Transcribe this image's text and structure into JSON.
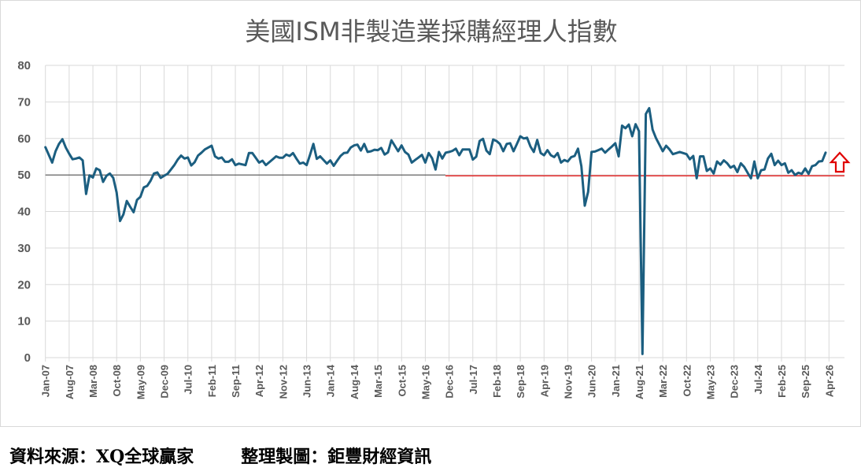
{
  "chart_data": {
    "type": "line",
    "title": "美國ISM非製造業採購經理人指數",
    "xlabel": "",
    "ylabel": "",
    "ylim": [
      0,
      80
    ],
    "yticks": [
      0,
      10,
      20,
      30,
      40,
      50,
      60,
      70,
      80
    ],
    "grid": true,
    "legend": "none",
    "x_tick_labels": [
      "Jan-07",
      "Aug-07",
      "Mar-08",
      "Oct-08",
      "May-09",
      "Dec-09",
      "Jul-10",
      "Feb-11",
      "Sep-11",
      "Apr-12",
      "Nov-12",
      "Jun-13",
      "Jan-14",
      "Aug-14",
      "Mar-15",
      "Oct-15",
      "May-16",
      "Dec-16",
      "Jul-17",
      "Feb-18",
      "Sep-18",
      "Apr-19",
      "Nov-19",
      "Jun-20",
      "Jan-21",
      "Aug-21",
      "Mar-22",
      "Oct-22",
      "May-23",
      "Dec-23",
      "Jul-24",
      "Feb-25",
      "Sep-25",
      "Apr-26"
    ],
    "x_start": "Jan-07",
    "x_frequency": "monthly",
    "reference_line": {
      "value": 50
    },
    "series": [
      {
        "color": "#1b5e80",
        "values": [
          57.6,
          55.5,
          53.4,
          56.5,
          58.5,
          59.8,
          57.5,
          55.8,
          54.3,
          54.5,
          54.8,
          54.0,
          44.8,
          49.9,
          49.3,
          51.8,
          51.3,
          48.1,
          49.8,
          50.4,
          49.2,
          45.2,
          37.4,
          39.2,
          42.9,
          41.3,
          39.8,
          43.2,
          44.0,
          46.6,
          47.0,
          48.4,
          50.4,
          50.7,
          49.2,
          49.8,
          50.3,
          51.5,
          52.7,
          54.2,
          55.3,
          54.5,
          54.8,
          52.6,
          53.5,
          55.3,
          56.1,
          57.0,
          57.5,
          58.0,
          55.1,
          54.5,
          54.8,
          53.6,
          53.6,
          54.3,
          52.7,
          53.1,
          52.9,
          52.7,
          56.0,
          56.0,
          54.7,
          53.4,
          53.9,
          52.7,
          53.5,
          54.3,
          55.1,
          54.7,
          54.7,
          55.6,
          55.2,
          56.0,
          54.5,
          53.1,
          53.4,
          52.7,
          55.5,
          58.5,
          54.4,
          55.1,
          54.1,
          53.1,
          54.0,
          52.5,
          53.9,
          55.2,
          56.0,
          56.1,
          57.5,
          58.1,
          58.3,
          56.7,
          58.5,
          56.3,
          56.5,
          56.9,
          56.8,
          57.4,
          55.6,
          56.2,
          59.5,
          58.0,
          56.5,
          58.1,
          56.3,
          55.6,
          53.4,
          54.1,
          54.8,
          55.5,
          53.4,
          56.0,
          54.6,
          51.5,
          56.3,
          54.5,
          56.1,
          56.3,
          56.6,
          57.2,
          55.4,
          57.0,
          57.0,
          57.0,
          54.2,
          55.0,
          59.3,
          59.9,
          56.7,
          55.7,
          59.7,
          59.3,
          58.5,
          56.5,
          58.5,
          58.7,
          56.5,
          58.5,
          60.6,
          60.0,
          60.2,
          57.8,
          56.3,
          59.6,
          56.0,
          55.4,
          56.8,
          55.4,
          54.9,
          56.0,
          53.4,
          54.1,
          53.7,
          54.9,
          55.2,
          57.2,
          52.4,
          41.6,
          45.4,
          56.3,
          56.4,
          56.8,
          57.2,
          56.1,
          57.0,
          57.8,
          58.7,
          55.1,
          63.5,
          62.8,
          63.8,
          60.6,
          63.9,
          62.0,
          1.0,
          66.7,
          68.3,
          62.4,
          60.1,
          58.3,
          56.5,
          58.0,
          57.0,
          55.7,
          56.0,
          56.3,
          56.0,
          55.7,
          54.3,
          55.2,
          49.1,
          55.1,
          55.1,
          51.1,
          51.8,
          50.4,
          53.7,
          52.8,
          54.0,
          53.2,
          52.0,
          52.5,
          50.8,
          53.2,
          52.2,
          50.6,
          49.1,
          53.7,
          49.1,
          51.3,
          51.5,
          54.5,
          55.8,
          52.7,
          53.9,
          52.7,
          53.2,
          50.6,
          51.3,
          50.0,
          50.6,
          50.3,
          51.8,
          50.3,
          52.4,
          52.7,
          53.7,
          53.8,
          56.1
        ]
      }
    ],
    "colors": {
      "line": "#1b5e80",
      "reference_line": "#e00000",
      "reference_line_left": "#404040",
      "grid": "#d9d9d9",
      "axis_text": "#595959",
      "arrow": "#e00000"
    },
    "annotation_icon": "up-arrow-outline-icon"
  },
  "footer": {
    "source": "資料來源：XQ全球贏家",
    "credit": "整理製圖：鉅豐財經資訊"
  }
}
